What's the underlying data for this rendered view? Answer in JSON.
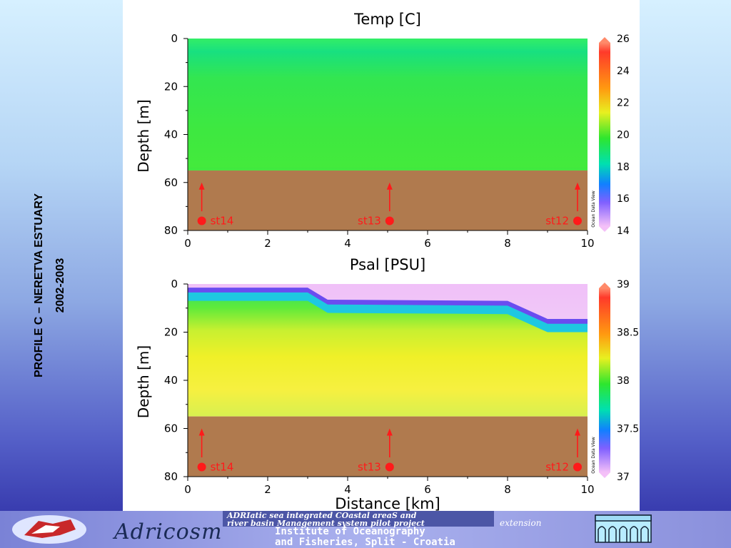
{
  "side_title": {
    "line1": "PROFILE C – NERETVA ESTUARY",
    "line2": "2002-2003"
  },
  "colors": {
    "seabed": "#b07a4e",
    "station_marker": "#ff1a1a",
    "frame_bg": "#ffffff"
  },
  "chart_data": [
    {
      "type": "heatmap",
      "title": "Temp [C]",
      "xlabel": "",
      "ylabel": "Depth [m]",
      "xlim": [
        0,
        10
      ],
      "ylim": [
        0,
        80
      ],
      "y_inverted": true,
      "y_ticks": [
        "0",
        "20",
        "40",
        "60",
        "80"
      ],
      "x_ticks": [
        "0",
        "2",
        "4",
        "6",
        "8",
        "10"
      ],
      "seabed_depth": 55,
      "colorbar": {
        "min": 14,
        "max": 26,
        "ticks": [
          "26",
          "24",
          "22",
          "20",
          "18",
          "16",
          "14"
        ]
      },
      "watermark": "Ocean Data View",
      "dominant_value": 20,
      "stations": [
        {
          "label": "st14",
          "x": 0.35
        },
        {
          "label": "st13",
          "x": 5.05
        },
        {
          "label": "st12",
          "x": 9.75
        }
      ]
    },
    {
      "type": "heatmap",
      "title": "Psal [PSU]",
      "xlabel": "Distance [km]",
      "ylabel": "Depth [m]",
      "xlim": [
        0,
        10
      ],
      "ylim": [
        0,
        80
      ],
      "y_inverted": true,
      "y_ticks": [
        "0",
        "20",
        "40",
        "60",
        "80"
      ],
      "x_ticks": [
        "0",
        "2",
        "4",
        "6",
        "8",
        "10"
      ],
      "seabed_depth": 55,
      "colorbar": {
        "min": 37,
        "max": 39,
        "ticks": [
          "39",
          "38.5",
          "38",
          "37.5",
          "37"
        ]
      },
      "watermark": "Ocean Data View",
      "surface_layer_depth_km": [
        [
          0,
          3
        ],
        [
          3,
          3
        ],
        [
          3.5,
          8
        ],
        [
          8,
          8.5
        ],
        [
          9,
          16
        ],
        [
          10,
          16
        ]
      ],
      "stations": [
        {
          "label": "st14",
          "x": 0.35
        },
        {
          "label": "st13",
          "x": 5.05
        },
        {
          "label": "st12",
          "x": 9.75
        }
      ]
    }
  ],
  "footer": {
    "brand": "Adricosm",
    "project_line1": "ADRIatic sea integrated COastal areaS and",
    "project_line2": "river basin Management system pilot project",
    "project_ext": "extension",
    "institute_line1": "Institute of Oceanography",
    "institute_line2": "and Fisheries, Split - Croatia"
  }
}
